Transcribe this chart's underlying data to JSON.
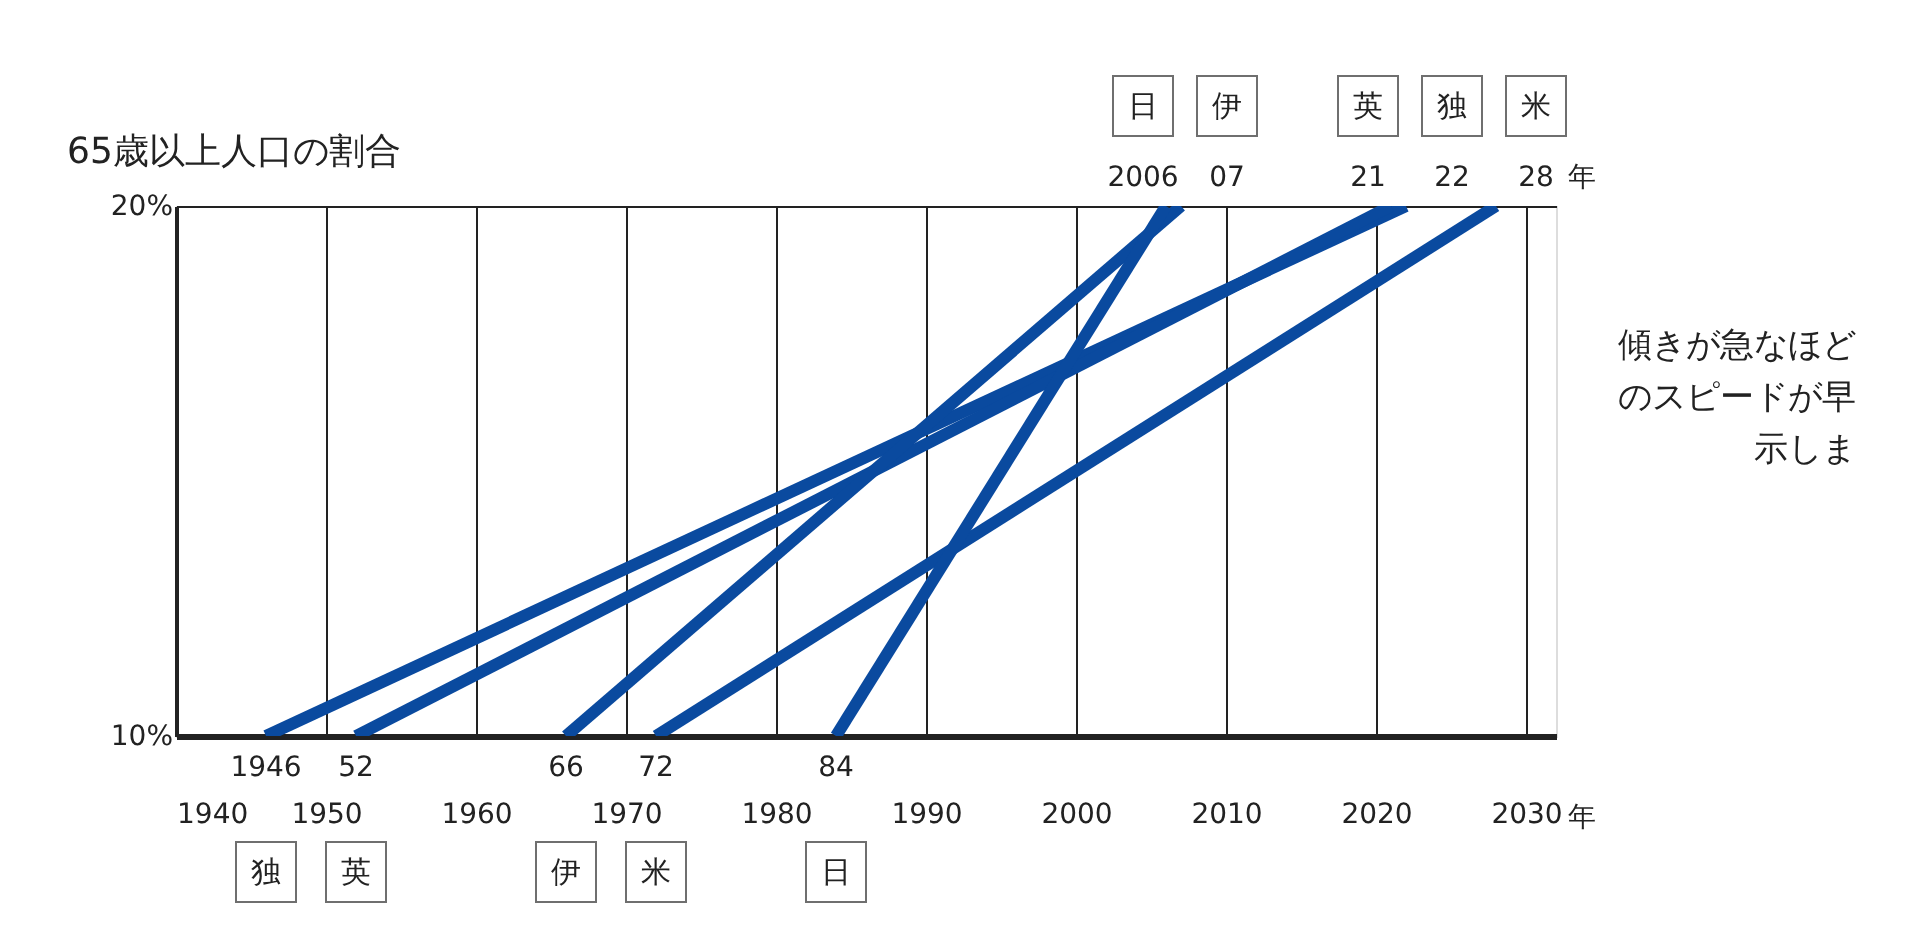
{
  "chart_data": {
    "type": "line",
    "ylabel": "65歳以上人口の割合",
    "xlabel": "年",
    "xlim": [
      1940,
      2032
    ],
    "xticks": [
      1940,
      1950,
      1960,
      1970,
      1980,
      1990,
      2000,
      2010,
      2020,
      2030
    ],
    "ylim": [
      10,
      20
    ],
    "yticks": [
      {
        "value": 10,
        "label": "10%"
      },
      {
        "value": 20,
        "label": "20%"
      }
    ],
    "grid": true,
    "legend": false,
    "marker": "none",
    "line_style": "solid",
    "series": [
      {
        "name": "独",
        "color": "#0a4a9f",
        "x": [
          1946,
          2022
        ],
        "values": [
          10,
          20
        ]
      },
      {
        "name": "英",
        "color": "#0a4a9f",
        "x": [
          1952,
          2021
        ],
        "values": [
          10,
          20
        ]
      },
      {
        "name": "伊",
        "color": "#0a4a9f",
        "x": [
          1966,
          2007
        ],
        "values": [
          10,
          20
        ]
      },
      {
        "name": "米",
        "color": "#0a4a9f",
        "x": [
          1972,
          2028
        ],
        "values": [
          10,
          20
        ]
      },
      {
        "name": "日",
        "color": "#0a4a9f",
        "x": [
          1984,
          2006
        ],
        "values": [
          10,
          20
        ]
      }
    ],
    "annotations": [
      {
        "text": "1946",
        "x": 1946,
        "y": 10
      },
      {
        "text": "52",
        "x": 1952,
        "y": 10
      },
      {
        "text": "66",
        "x": 1966,
        "y": 10
      },
      {
        "text": "72",
        "x": 1972,
        "y": 10
      },
      {
        "text": "84",
        "x": 1984,
        "y": 10
      },
      {
        "text": "2006",
        "x": 2006,
        "y": 20
      },
      {
        "text": "07",
        "x": 2007,
        "y": 20
      },
      {
        "text": "21",
        "x": 2021,
        "y": 20
      },
      {
        "text": "22",
        "x": 2022,
        "y": 20
      },
      {
        "text": "28",
        "x": 2028,
        "y": 20
      },
      "年",
      "傾きが急なほど",
      "のスピードが早",
      "示しま"
    ]
  }
}
